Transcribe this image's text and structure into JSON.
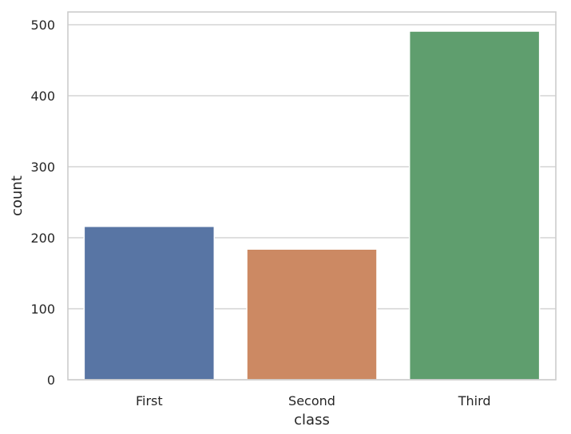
{
  "chart_data": {
    "type": "bar",
    "categories": [
      "First",
      "Second",
      "Third"
    ],
    "values": [
      216,
      184,
      491
    ],
    "colors": [
      "#5875a4",
      "#cc8963",
      "#5f9e6e"
    ],
    "title": "",
    "xlabel": "class",
    "ylabel": "count",
    "ylim": [
      0,
      518
    ],
    "yticks": [
      0,
      100,
      200,
      300,
      400,
      500
    ],
    "grid": "horizontal"
  }
}
